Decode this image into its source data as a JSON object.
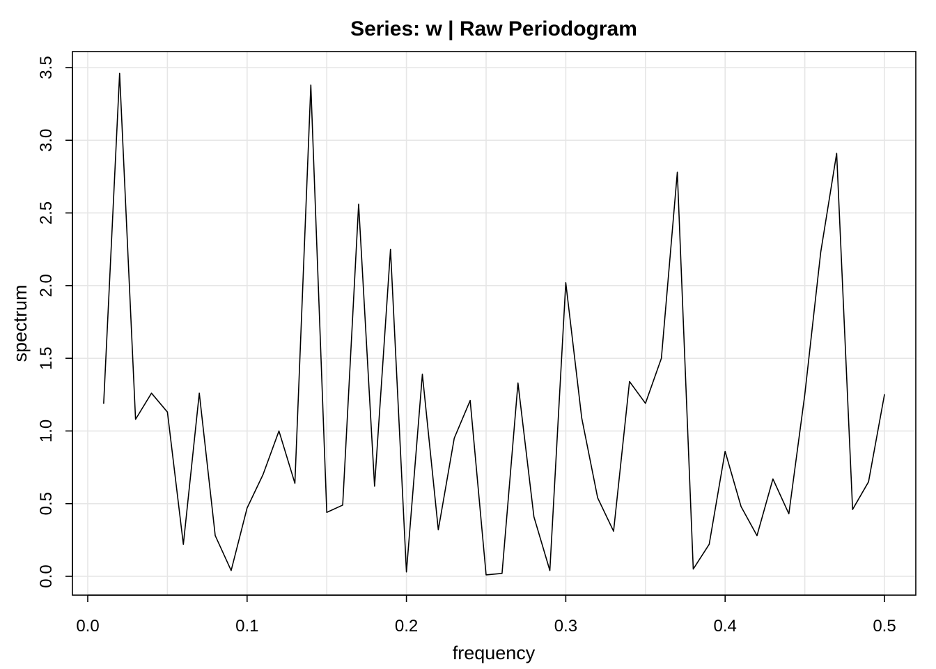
{
  "chart_data": {
    "type": "line",
    "title": "Series: w  |  Raw Periodogram",
    "xlabel": "frequency",
    "ylabel": "spectrum",
    "xlim": [
      0.0,
      0.5
    ],
    "ylim": [
      0.0,
      3.5
    ],
    "x_ticks": [
      0.0,
      0.1,
      0.2,
      0.3,
      0.4,
      0.5
    ],
    "x_tick_labels": [
      "0.0",
      "0.1",
      "0.2",
      "0.3",
      "0.4",
      "0.5"
    ],
    "y_ticks": [
      0.0,
      0.5,
      1.0,
      1.5,
      2.0,
      2.5,
      3.0,
      3.5
    ],
    "y_tick_labels": [
      "0.0",
      "0.5",
      "1.0",
      "1.5",
      "2.0",
      "2.5",
      "3.0",
      "3.5"
    ],
    "x_grid": [
      0.0,
      0.05,
      0.1,
      0.15,
      0.2,
      0.25,
      0.3,
      0.35,
      0.4,
      0.45,
      0.5
    ],
    "y_grid": [
      0.0,
      0.5,
      1.0,
      1.5,
      2.0,
      2.5,
      3.0,
      3.5
    ],
    "grid": true,
    "series": [
      {
        "x": [
          0.01,
          0.02,
          0.03,
          0.04,
          0.05,
          0.06,
          0.07,
          0.08,
          0.09,
          0.1,
          0.11,
          0.12,
          0.13,
          0.14,
          0.15,
          0.16,
          0.17,
          0.18,
          0.19,
          0.2,
          0.21,
          0.22,
          0.23,
          0.24,
          0.25,
          0.26,
          0.27,
          0.28,
          0.29,
          0.3,
          0.31,
          0.32,
          0.33,
          0.34,
          0.35,
          0.36,
          0.37,
          0.38,
          0.39,
          0.4,
          0.41,
          0.42,
          0.43,
          0.44,
          0.45,
          0.46,
          0.47,
          0.48,
          0.49,
          0.5
        ],
        "values": [
          1.19,
          3.46,
          1.08,
          1.26,
          1.13,
          0.22,
          1.26,
          0.28,
          0.04,
          0.47,
          0.7,
          1.0,
          0.64,
          3.38,
          0.44,
          0.49,
          2.56,
          0.62,
          2.25,
          0.03,
          1.39,
          0.32,
          0.95,
          1.21,
          0.01,
          0.02,
          1.33,
          0.41,
          0.04,
          2.02,
          1.09,
          0.54,
          0.31,
          1.34,
          1.19,
          1.5,
          2.78,
          0.05,
          0.22,
          0.86,
          0.48,
          0.28,
          0.67,
          0.43,
          1.25,
          2.23,
          2.91,
          0.46,
          0.65,
          1.25
        ]
      }
    ]
  }
}
